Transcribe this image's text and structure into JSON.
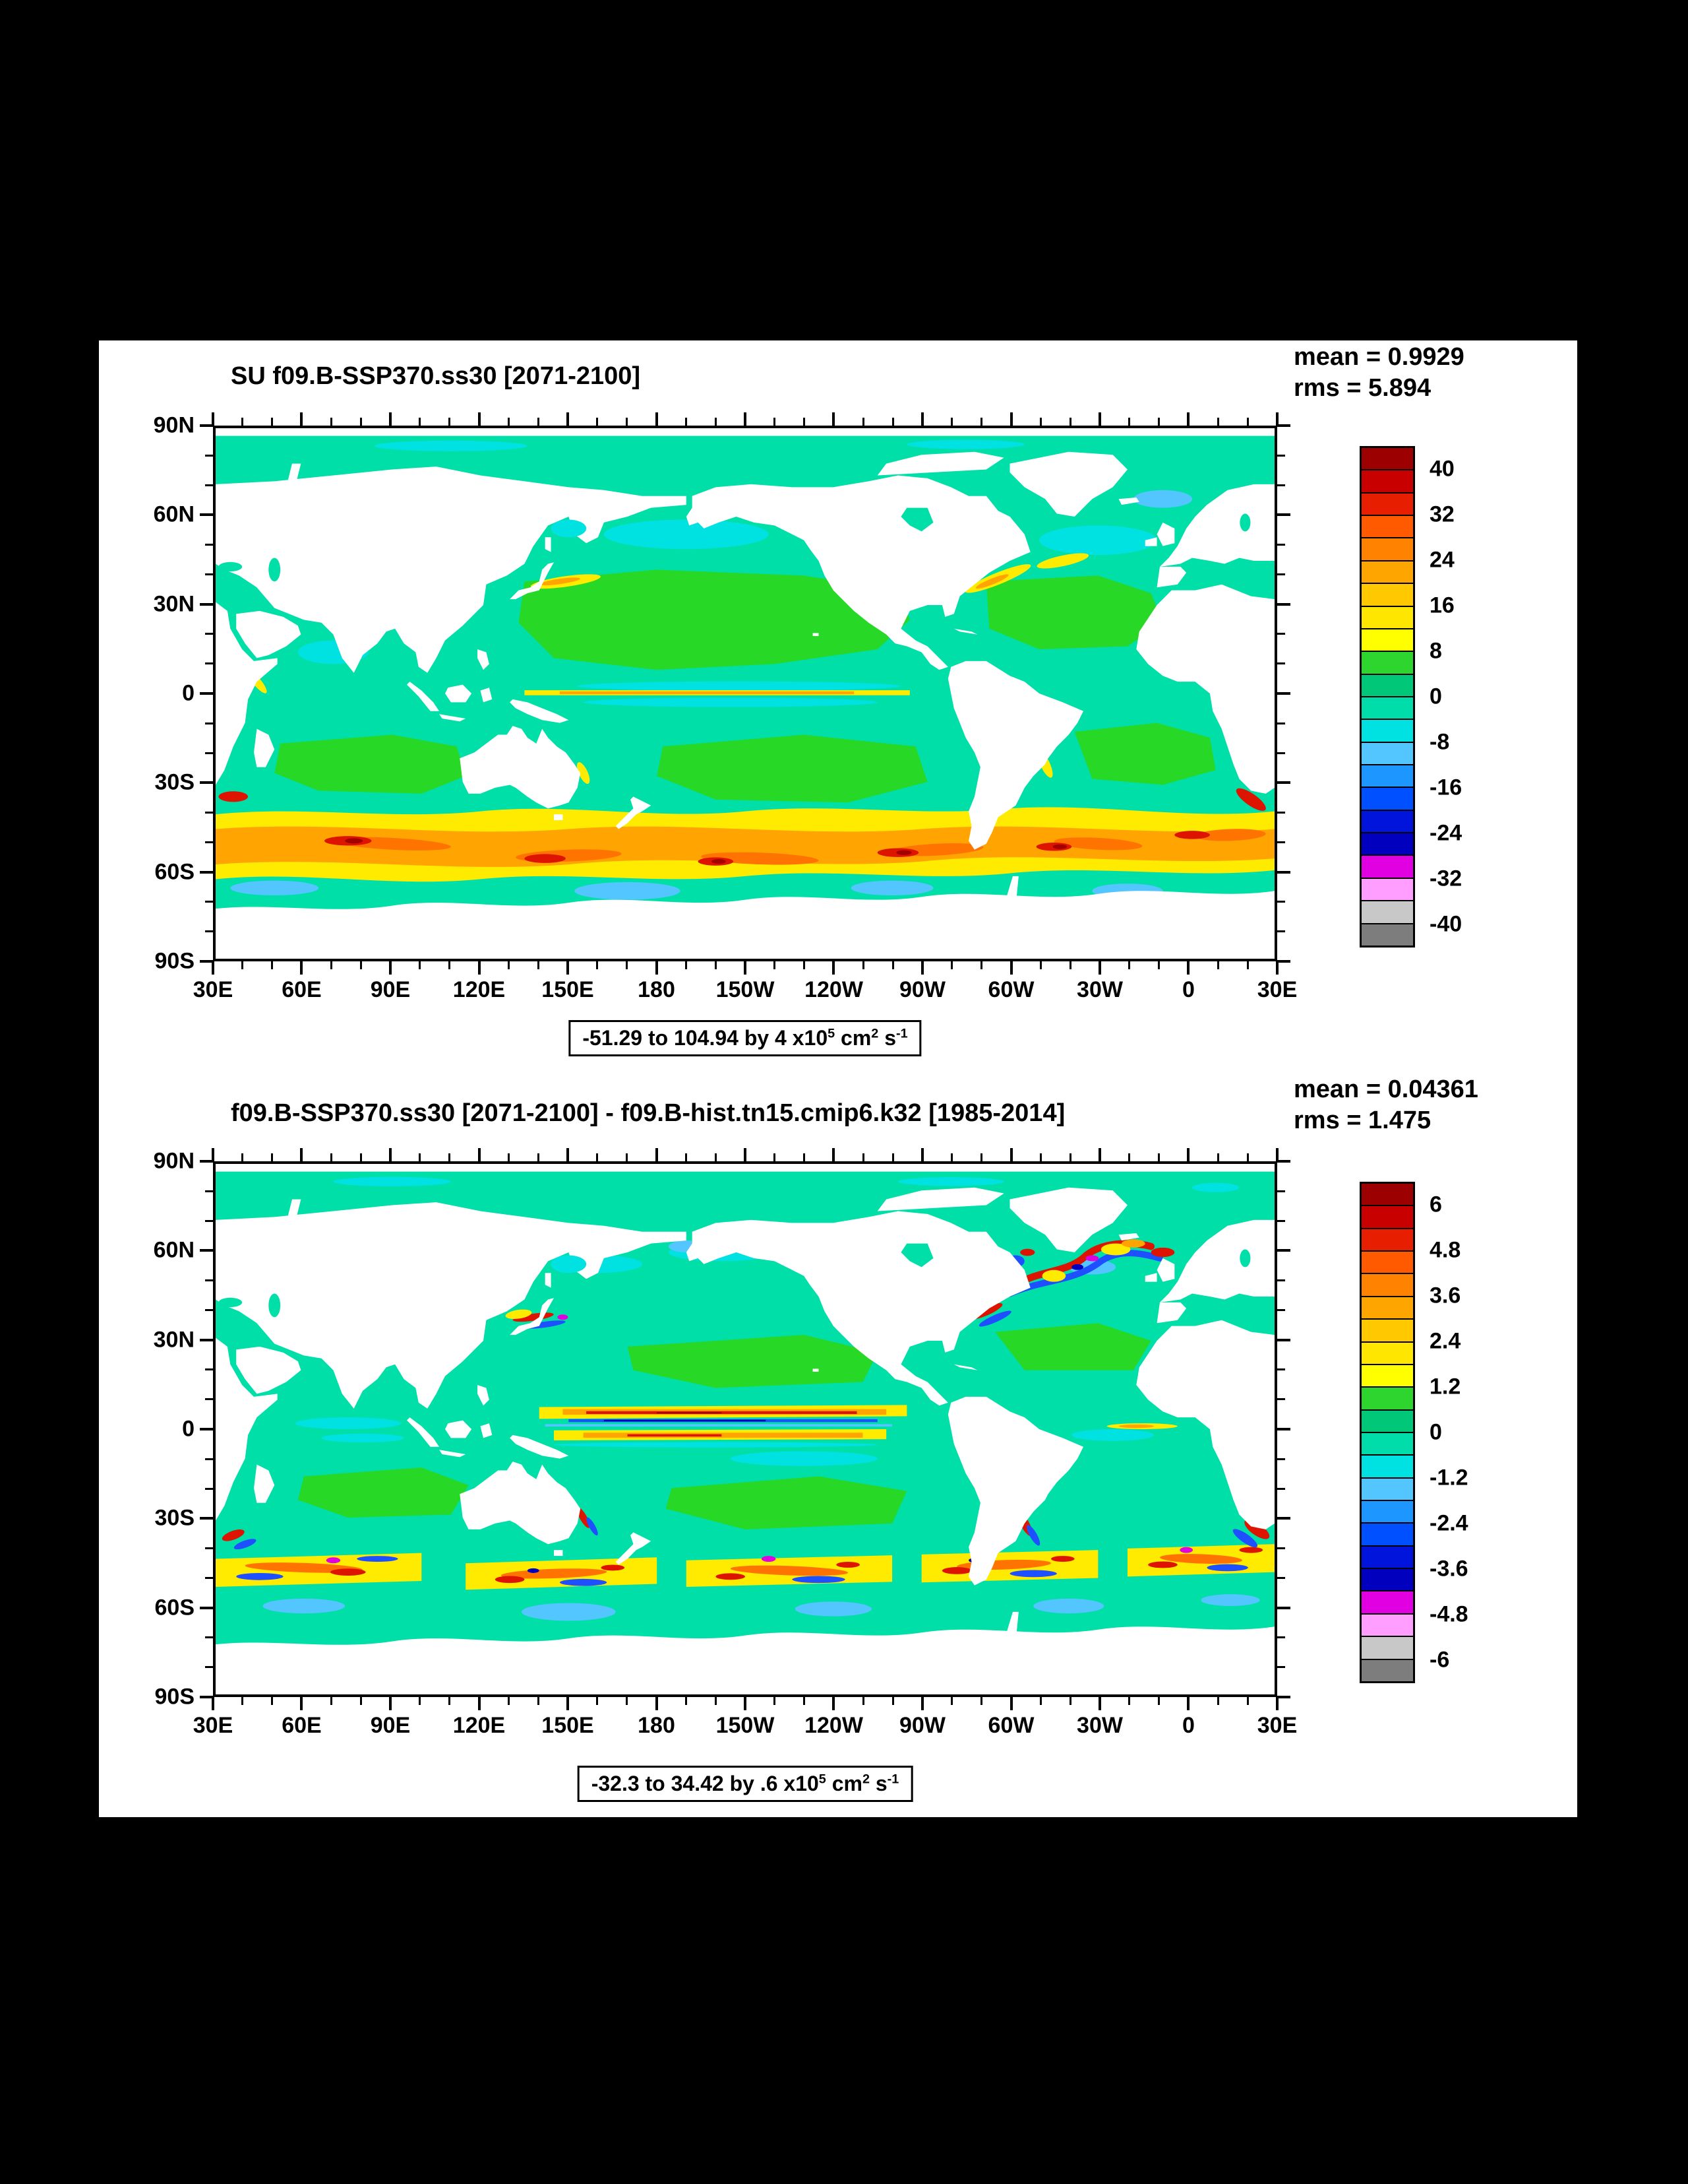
{
  "page": {
    "background": "#000000",
    "panel_background": "#ffffff"
  },
  "palette": {
    "cells": [
      "#9c0000",
      "#c80000",
      "#e81e00",
      "#ff5a00",
      "#ff8200",
      "#ffa500",
      "#ffc800",
      "#ffe600",
      "#ffff00",
      "#2fd52f",
      "#00c878",
      "#00dcaa",
      "#00e1e1",
      "#53c5ff",
      "#1e96ff",
      "#0050ff",
      "#0014dc",
      "#0000be",
      "#e100e1",
      "#ff9eff",
      "#c8c8c8",
      "#7d7d7d"
    ]
  },
  "axes": {
    "lat_labels": [
      "90N",
      "60N",
      "30N",
      "0",
      "30S",
      "60S",
      "90S"
    ],
    "lon_labels": [
      "30E",
      "60E",
      "90E",
      "120E",
      "150E",
      "180",
      "150W",
      "120W",
      "90W",
      "60W",
      "30W",
      "0",
      "30E"
    ],
    "lat_major_step_deg": 30,
    "lat_minor_step_deg": 10,
    "lon_major_step_deg": 30,
    "lon_minor_step_deg": 10
  },
  "plots": [
    {
      "title": "SU f09.B-SSP370.ss30 [2071-2100]",
      "mean": "mean = 0.9929",
      "rms": "rms = 5.894",
      "colorbar_labels": [
        "40",
        "32",
        "24",
        "16",
        "8",
        "0",
        "-8",
        "-16",
        "-24",
        "-32",
        "-40"
      ],
      "caption": {
        "range": "-51.29 to 104.94 by 4 x10",
        "exp": "5",
        "unit1": " cm",
        "unit1_exp": "2",
        "unit2": " s",
        "unit2_exp": "-1"
      }
    },
    {
      "title": "f09.B-SSP370.ss30 [2071-2100] - f09.B-hist.tn15.cmip6.k32 [1985-2014]",
      "mean": "mean = 0.04361",
      "rms": "rms = 1.475",
      "colorbar_labels": [
        "6",
        "4.8",
        "3.6",
        "2.4",
        "1.2",
        "0",
        "-1.2",
        "-2.4",
        "-3.6",
        "-4.8",
        "-6"
      ],
      "caption": {
        "range": "-32.3 to 34.42 by .6 x10",
        "exp": "5",
        "unit1": " cm",
        "unit1_exp": "2",
        "unit2": " s",
        "unit2_exp": "-1"
      }
    }
  ],
  "chart_data": [
    {
      "type": "heatmap",
      "title": "SU f09.B-SSP370.ss30 [2071-2100]",
      "variable": "SU",
      "stats": {
        "mean": 0.9929,
        "rms": 5.894
      },
      "value_range": {
        "min": -51.29,
        "max": 104.94,
        "contour_interval": 4
      },
      "units": "x10^5 cm^2 s^-1",
      "colorbar_levels": [
        40,
        32,
        24,
        16,
        8,
        0,
        -8,
        -16,
        -24,
        -32,
        -40
      ],
      "x_axis": {
        "tick_labels": [
          "30E",
          "60E",
          "90E",
          "120E",
          "150E",
          "180",
          "150W",
          "120W",
          "90W",
          "60W",
          "30W",
          "0",
          "30E"
        ],
        "span_deg": 360
      },
      "y_axis": {
        "tick_labels": [
          "90N",
          "60N",
          "30N",
          "0",
          "30S",
          "60S",
          "90S"
        ],
        "span_deg": 180
      },
      "summary": "Global lat-lon field, mostly near-zero (teal/green); strong positive yellow-orange-red band along Southern Ocean 40S-60S; narrow positive jet along the equatorial Pacific; weaker positive streaks at Kuroshio, Gulf Stream and Agulhas."
    },
    {
      "type": "heatmap",
      "title": "f09.B-SSP370.ss30 [2071-2100] - f09.B-hist.tn15.cmip6.k32 [1985-2014]",
      "variable": "SU difference",
      "stats": {
        "mean": 0.04361,
        "rms": 1.475
      },
      "value_range": {
        "min": -32.3,
        "max": 34.42,
        "contour_interval": 0.6
      },
      "units": "x10^5 cm^2 s^-1",
      "colorbar_levels": [
        6,
        4.8,
        3.6,
        2.4,
        1.2,
        0,
        -1.2,
        -2.4,
        -3.6,
        -4.8,
        -6
      ],
      "x_axis": {
        "tick_labels": [
          "30E",
          "60E",
          "90E",
          "120E",
          "150E",
          "180",
          "150W",
          "120W",
          "90W",
          "60W",
          "30W",
          "0",
          "30E"
        ],
        "span_deg": 360
      },
      "y_axis": {
        "tick_labels": [
          "90N",
          "60N",
          "30N",
          "0",
          "30S",
          "60S",
          "90S"
        ],
        "span_deg": 180
      },
      "summary": "Difference map, near-zero (teal) over most ocean; alternating red/blue/yellow streaks along the equatorial Pacific, a dense red-blue-yellow tangle in the North Atlantic Current region, and scattered positive/negative streaks along Southern Ocean fronts, Kuroshio, Agulhas and Brazil-Malvinas."
    }
  ]
}
